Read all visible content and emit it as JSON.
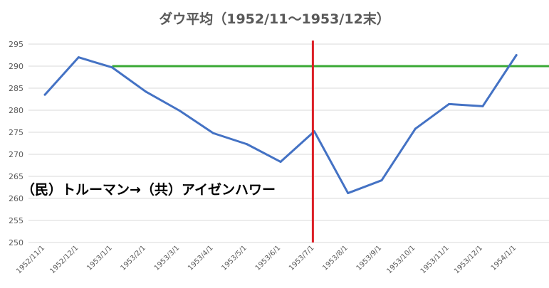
{
  "chart_data": {
    "type": "line",
    "title": "ダウ平均（1952/11～1953/12末）",
    "annotation": "（民）トルーマン→（共）アイゼンハワー",
    "categories": [
      "1952/11/1",
      "1952/12/1",
      "1953/1/1",
      "1953/2/1",
      "1953/3/1",
      "1953/4/1",
      "1953/5/1",
      "1953/6/1",
      "1953/7/1",
      "1953/8/1",
      "1953/9/1",
      "1953/10/1",
      "1953/11/1",
      "1953/12/1",
      "1954/1/1"
    ],
    "series": [
      {
        "values": [
          283.5,
          292.0,
          289.7,
          284.2,
          279.9,
          274.8,
          272.3,
          268.3,
          275.2,
          261.2,
          264.1,
          275.8,
          281.4,
          280.9,
          292.5
        ]
      }
    ],
    "ylim": [
      250,
      295
    ],
    "yticks": [
      250,
      255,
      260,
      265,
      270,
      275,
      280,
      285,
      290,
      295
    ],
    "grid": true,
    "reference_hline": {
      "y": 290,
      "from_category": "1953/1/1",
      "color": "#3AA935"
    },
    "reference_vline": {
      "category": "1953/7/1",
      "color": "#DC1F26"
    },
    "colors": {
      "series": "#4472C4",
      "grid": "#D9D9D9"
    }
  }
}
